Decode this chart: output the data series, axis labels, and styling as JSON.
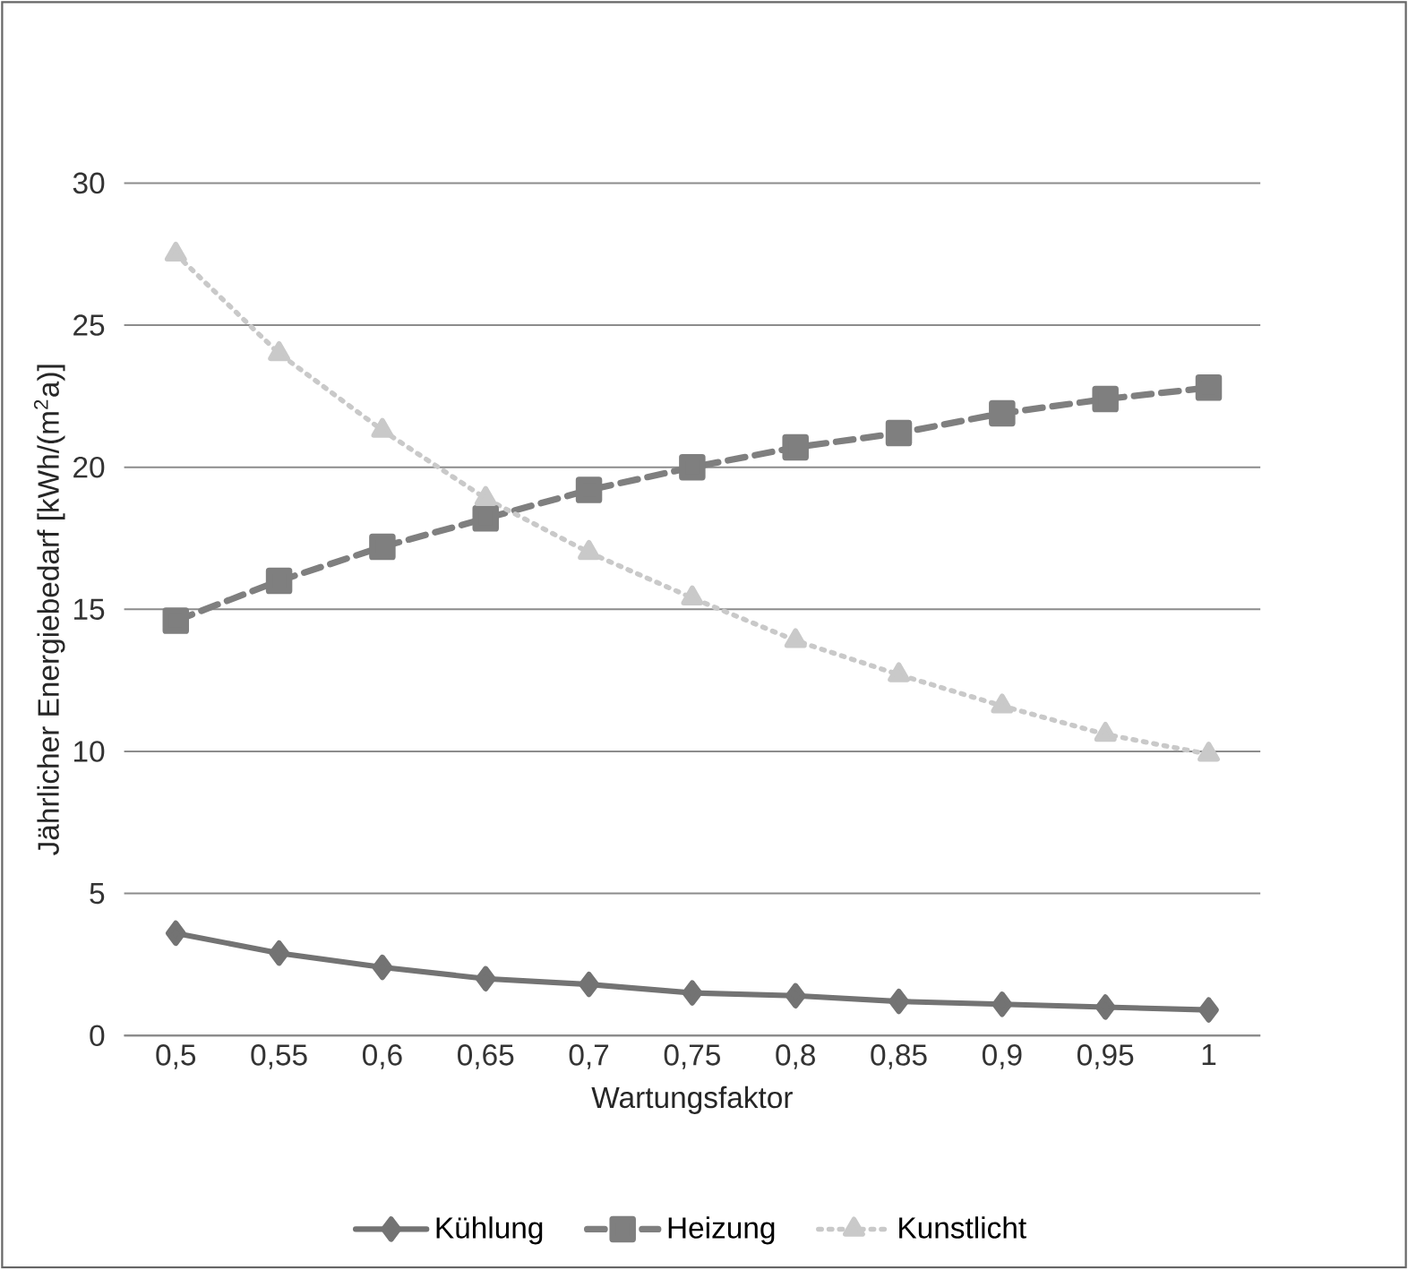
{
  "chart_data": {
    "type": "line",
    "xlabel": "Wartungsfaktor",
    "ylabel": "Jährlicher Energiebedarf [kWh/(m$^{2}$a)]",
    "categories": [
      "0,5",
      "0,55",
      "0,6",
      "0,65",
      "0,7",
      "0,75",
      "0,8",
      "0,85",
      "0,9",
      "0,95",
      "1"
    ],
    "ylim": [
      0,
      30
    ],
    "yticks": [
      0,
      5,
      10,
      15,
      20,
      25,
      30
    ],
    "grid": "y",
    "legend": "bottom",
    "series": [
      {
        "name": "Kühlung",
        "color": "#737373",
        "marker": "diamond",
        "line_style": "solid",
        "values": [
          3.6,
          2.9,
          2.4,
          2.0,
          1.8,
          1.5,
          1.4,
          1.2,
          1.1,
          1.0,
          0.9
        ]
      },
      {
        "name": "Heizung",
        "color": "#7f7f7f",
        "marker": "square",
        "line_style": "dashed",
        "values": [
          14.6,
          16.0,
          17.2,
          18.2,
          19.2,
          20.0,
          20.7,
          21.2,
          21.9,
          22.4,
          22.8
        ]
      },
      {
        "name": "Kunstlicht",
        "color": "#c9c9c9",
        "marker": "triangle",
        "line_style": "dotted",
        "values": [
          27.5,
          24.0,
          21.3,
          18.9,
          17.0,
          15.4,
          13.9,
          12.7,
          11.6,
          10.6,
          9.9
        ]
      }
    ]
  }
}
